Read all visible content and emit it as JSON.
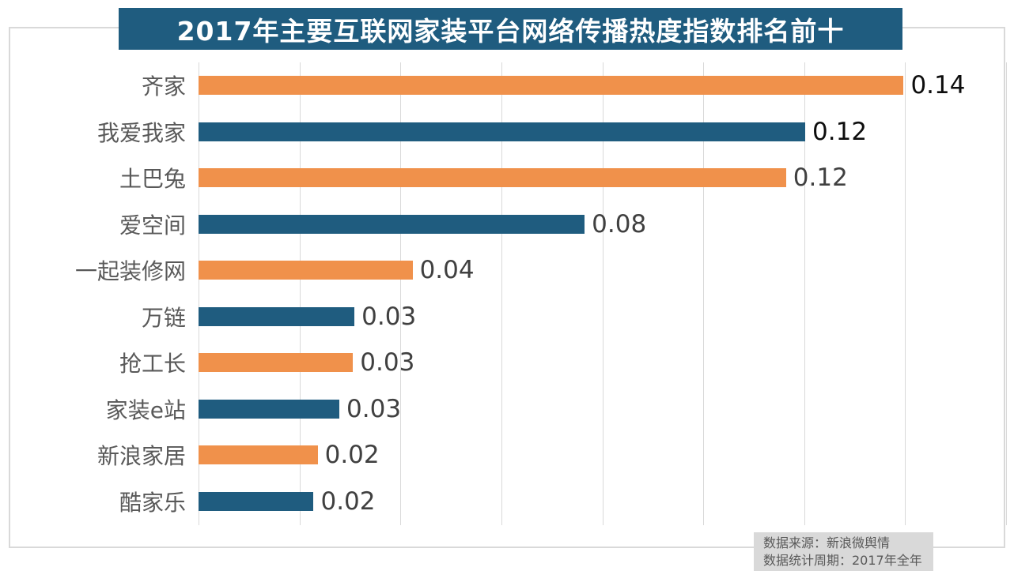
{
  "title": "2017年主要互联网家装平台网络传播热度指数排名前十",
  "colors": {
    "banner_bg": "#1f5c7f",
    "banner_text": "#ffffff",
    "orange": "#f0914b",
    "blue": "#1f5c7f",
    "grid": "#d9d9d9",
    "frame_border": "#d9d9d9",
    "category_text": "#595959",
    "source_bg": "#d9d9d9",
    "source_text": "#595959"
  },
  "source": {
    "line1": "数据来源：新浪微舆情",
    "line2": "数据统计周期：2017年全年"
  },
  "chart_data": {
    "type": "bar",
    "orientation": "horizontal",
    "title": "2017年主要互联网家装平台网络传播热度指数排名前十",
    "categories": [
      "齐家",
      "我爱我家",
      "土巴兔",
      "爱空间",
      "一起装修网",
      "万链",
      "抢工长",
      "家装e站",
      "新浪家居",
      "酷家乐"
    ],
    "values": [
      0.14,
      0.12,
      0.12,
      0.08,
      0.04,
      0.03,
      0.03,
      0.03,
      0.02,
      0.02
    ],
    "value_labels": [
      "0.14",
      "0.12",
      "0.12",
      "0.08",
      "0.04",
      "0.03",
      "0.03",
      "0.03",
      "0.02",
      "0.02"
    ],
    "values_precise_estimated": [
      0.1397,
      0.1202,
      0.1164,
      0.0765,
      0.0424,
      0.0309,
      0.0306,
      0.0279,
      0.0236,
      0.0228
    ],
    "bar_colors": [
      "#f0914b",
      "#1f5c7f",
      "#f0914b",
      "#1f5c7f",
      "#f0914b",
      "#1f5c7f",
      "#f0914b",
      "#1f5c7f",
      "#f0914b",
      "#1f5c7f"
    ],
    "value_label_colors": [
      "#0d0d0d",
      "#0d0d0d",
      "#404040",
      "#404040",
      "#404040",
      "#404040",
      "#404040",
      "#404040",
      "#404040",
      "#404040"
    ],
    "xlabel": "",
    "ylabel": "",
    "xlim": [
      0,
      0.16
    ],
    "gridline_interval": 0.02,
    "grid": true,
    "legend": false,
    "data_labels": true
  }
}
